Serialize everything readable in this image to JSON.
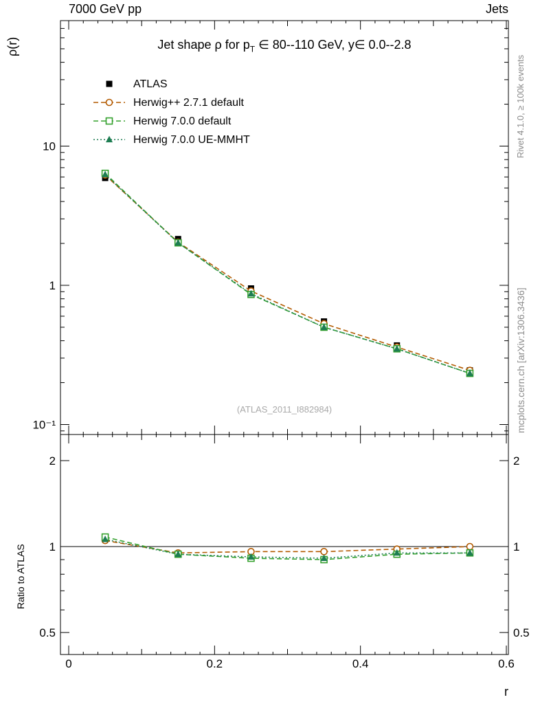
{
  "page": {
    "header_left": "7000 GeV pp",
    "header_right": "Jets",
    "watermark": "(ATLAS_2011_I882984)",
    "right_label_top": "Rivet 4.1.0, ≥ 100k events",
    "right_label_bottom": "mcplots.cern.ch [arXiv:1306.3436]"
  },
  "chart_data": {
    "type": "line",
    "title": "Jet shape ρ for p_T ∈ 80--110 GeV, y∈ 0.0--2.8",
    "title_parts": {
      "prefix": "Jet shape ρ for p",
      "sub": "T",
      "suffix": " ∈ 80--110 GeV, y∈ 0.0--2.8"
    },
    "xlabel": "r",
    "ylabel_top": "ρ(r)",
    "ylabel_bottom": "Ratio to ATLAS",
    "x": [
      0.05,
      0.15,
      0.25,
      0.35,
      0.45,
      0.55
    ],
    "xlim": [
      0,
      0.6
    ],
    "ylim_top": [
      0.085,
      75
    ],
    "ylim_bottom": [
      0.42,
      2.45
    ],
    "yscale_top": "log",
    "yscale_bottom": "log",
    "grid": false,
    "legend_position": "upper-left",
    "xticks": {
      "values": [
        0,
        0.2,
        0.4,
        0.6
      ],
      "labels": [
        "0",
        "0.2",
        "0.4",
        "0.6"
      ]
    },
    "yticks_top": {
      "values": [
        10,
        1,
        0.1
      ],
      "labels": [
        "10",
        "1",
        "10⁻¹"
      ]
    },
    "yticks_bottom": {
      "values": [
        2,
        1,
        0.5
      ],
      "labels": [
        "2",
        "1",
        "0.5"
      ]
    },
    "series": [
      {
        "name": "ATLAS",
        "marker": "filled-square",
        "color": "#000000",
        "line": "none",
        "values": [
          5.9,
          2.15,
          0.95,
          0.55,
          0.37,
          0.245
        ]
      },
      {
        "name": "Herwig++ 2.7.1 default",
        "marker": "open-circle",
        "color": "#b35a00",
        "line": "dashed",
        "values": [
          6.2,
          2.04,
          0.91,
          0.53,
          0.36,
          0.245
        ],
        "ratio": [
          1.05,
          0.95,
          0.96,
          0.96,
          0.98,
          1.0
        ]
      },
      {
        "name": "Herwig 7.0.0 default",
        "marker": "open-square",
        "color": "#33a02c",
        "line": "dashed",
        "values": [
          6.37,
          2.02,
          0.86,
          0.5,
          0.35,
          0.233
        ],
        "ratio": [
          1.08,
          0.94,
          0.91,
          0.9,
          0.94,
          0.95
        ]
      },
      {
        "name": "Herwig 7.0.0 UE-MMHT",
        "marker": "filled-triangle",
        "color": "#1e7d52",
        "line": "dotted",
        "values": [
          6.25,
          2.02,
          0.87,
          0.5,
          0.35,
          0.233
        ],
        "ratio": [
          1.06,
          0.94,
          0.92,
          0.91,
          0.95,
          0.95
        ]
      }
    ]
  }
}
